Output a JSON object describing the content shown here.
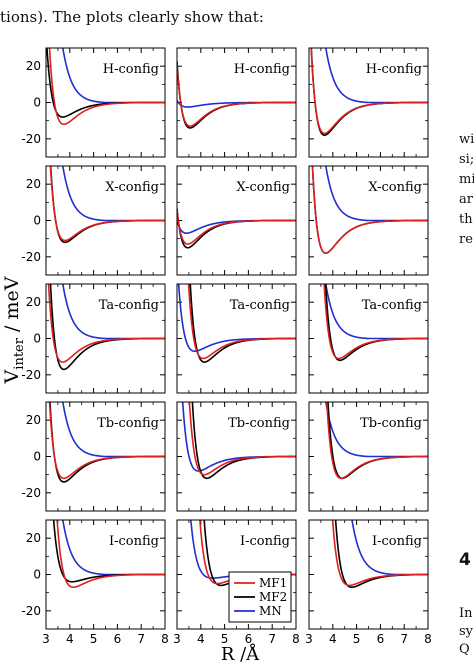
{
  "page": {
    "top_text": "tions). The plots clearly show that:",
    "right_text": [
      "wi",
      "si;",
      "mi",
      "ar",
      "th",
      "re"
    ],
    "section_number": "4",
    "right_bottom": [
      "In",
      "sy",
      "Q"
    ]
  },
  "chart_data": {
    "type": "line",
    "xlabel": "R /Å",
    "ylabel": "V_inter / meV",
    "xlim": [
      3,
      8
    ],
    "ylim": [
      -30,
      30
    ],
    "x_ticks": [
      3,
      4,
      5,
      6,
      7,
      8
    ],
    "y_ticks": [
      -20,
      0,
      20
    ],
    "grid": false,
    "legend": {
      "placement": "bottom-right of last row, first column",
      "entries": [
        {
          "name": "MF1",
          "color": "#dd1f1f"
        },
        {
          "name": "MF2",
          "color": "#000000"
        },
        {
          "name": "MN",
          "color": "#1f2fd0"
        }
      ]
    },
    "rows": [
      {
        "config": "H-config",
        "panels": [
          {
            "MF1": [
              -12,
              3.75
            ],
            "MF2": [
              -8,
              3.7
            ],
            "MN": [
              0.5,
              3.6
            ]
          },
          {
            "MF1": [
              -13,
              3.55
            ],
            "MF2": [
              -14,
              3.55
            ],
            "MN": [
              -2.5,
              3.45
            ]
          },
          {
            "MF1": [
              -17,
              3.65
            ],
            "MF2": [
              -18,
              3.65
            ],
            "MN": [
              0.5,
              3.6
            ]
          }
        ]
      },
      {
        "config": "X-config",
        "panels": [
          {
            "MF1": [
              -11,
              3.8
            ],
            "MF2": [
              -12,
              3.8
            ],
            "MN": [
              0.5,
              3.6
            ]
          },
          {
            "MF1": [
              -13,
              3.45
            ],
            "MF2": [
              -15,
              3.45
            ],
            "MN": [
              -7,
              3.4
            ]
          },
          {
            "MF1": [
              -18,
              3.7
            ],
            "MF2": [
              -18,
              3.7
            ],
            "MN": [
              0.5,
              3.6
            ]
          }
        ]
      },
      {
        "config": "Ta-config",
        "panels": [
          {
            "MF1": [
              -13,
              3.7
            ],
            "MF2": [
              -17,
              3.75
            ],
            "MN": [
              0.5,
              3.6
            ]
          },
          {
            "MF1": [
              -11,
              4.1
            ],
            "MF2": [
              -13,
              4.15
            ],
            "MN": [
              -7,
              3.75
            ]
          },
          {
            "MF1": [
              -11,
              4.25
            ],
            "MF2": [
              -12,
              4.3
            ],
            "MN": [
              0.5,
              3.6
            ]
          }
        ]
      },
      {
        "config": "Tb-config",
        "panels": [
          {
            "MF1": [
              -12,
              3.75
            ],
            "MF2": [
              -14,
              3.75
            ],
            "MN": [
              0.5,
              3.6
            ]
          },
          {
            "MF1": [
              -10,
              4.15
            ],
            "MF2": [
              -12,
              4.25
            ],
            "MN": [
              -8,
              3.9
            ]
          },
          {
            "MF1": [
              -12,
              4.35
            ],
            "MF2": [
              -12,
              4.4
            ],
            "MN": [
              0.5,
              3.6
            ]
          }
        ]
      },
      {
        "config": "I-config",
        "panels": [
          {
            "MF1": [
              -7,
              4.15
            ],
            "MF2": [
              -4,
              4.1
            ],
            "MN": [
              0.5,
              3.6
            ]
          },
          {
            "MF1": [
              -5,
              4.7
            ],
            "MF2": [
              -6,
              4.85
            ],
            "MN": [
              -2,
              4.5
            ]
          },
          {
            "MF1": [
              -6,
              4.7
            ],
            "MF2": [
              -7,
              4.8
            ],
            "MN": [
              0.5,
              4.7
            ]
          }
        ]
      }
    ]
  }
}
